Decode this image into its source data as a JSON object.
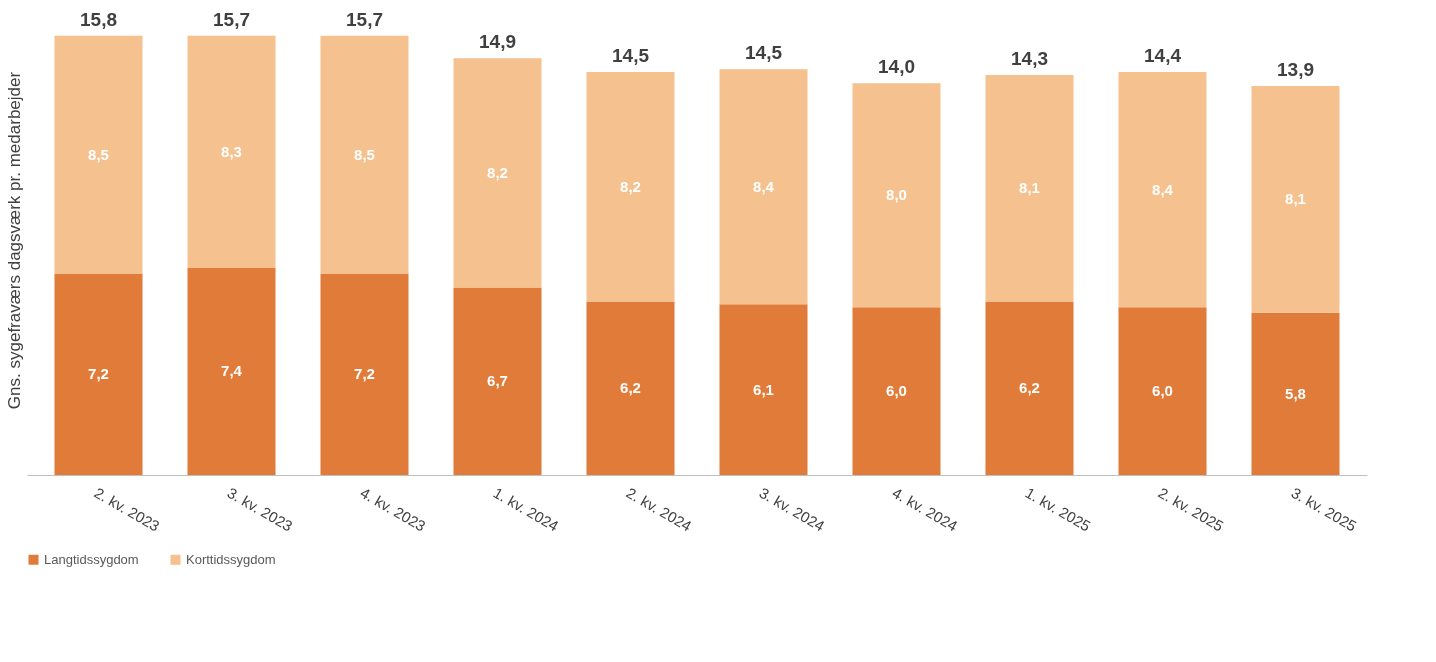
{
  "chart_data": {
    "type": "bar",
    "stacked": true,
    "ylabel": "Gns. sygefraværs dagsværk pr. medarbejder",
    "categories": [
      "2. kv. 2023",
      "3. kv. 2023",
      "4. kv. 2023",
      "1. kv. 2024",
      "2. kv. 2024",
      "3. kv. 2024",
      "4. kv. 2024",
      "1. kv. 2025",
      "2. kv. 2025",
      "3. kv. 2025"
    ],
    "series": [
      {
        "name": "Langtidssygdom",
        "color": "#e07b39",
        "values": [
          7.2,
          7.4,
          7.2,
          6.7,
          6.2,
          6.1,
          6.0,
          6.2,
          6.0,
          5.8
        ],
        "value_labels": [
          "7,2",
          "7,4",
          "7,2",
          "6,7",
          "6,2",
          "6,1",
          "6,0",
          "6,2",
          "6,0",
          "5,8"
        ]
      },
      {
        "name": "Korttidssygdom",
        "color": "#f5c18e",
        "values": [
          8.5,
          8.3,
          8.5,
          8.2,
          8.2,
          8.4,
          8.0,
          8.1,
          8.4,
          8.1
        ],
        "value_labels": [
          "8,5",
          "8,3",
          "8,5",
          "8,2",
          "8,2",
          "8,4",
          "8,0",
          "8,1",
          "8,4",
          "8,1"
        ]
      }
    ],
    "totals": [
      "15,8",
      "15,7",
      "15,7",
      "14,9",
      "14,5",
      "14,5",
      "14,0",
      "14,3",
      "14,4",
      "13,9"
    ],
    "legend": "bottom",
    "grid": false,
    "tick_labels": "x"
  }
}
